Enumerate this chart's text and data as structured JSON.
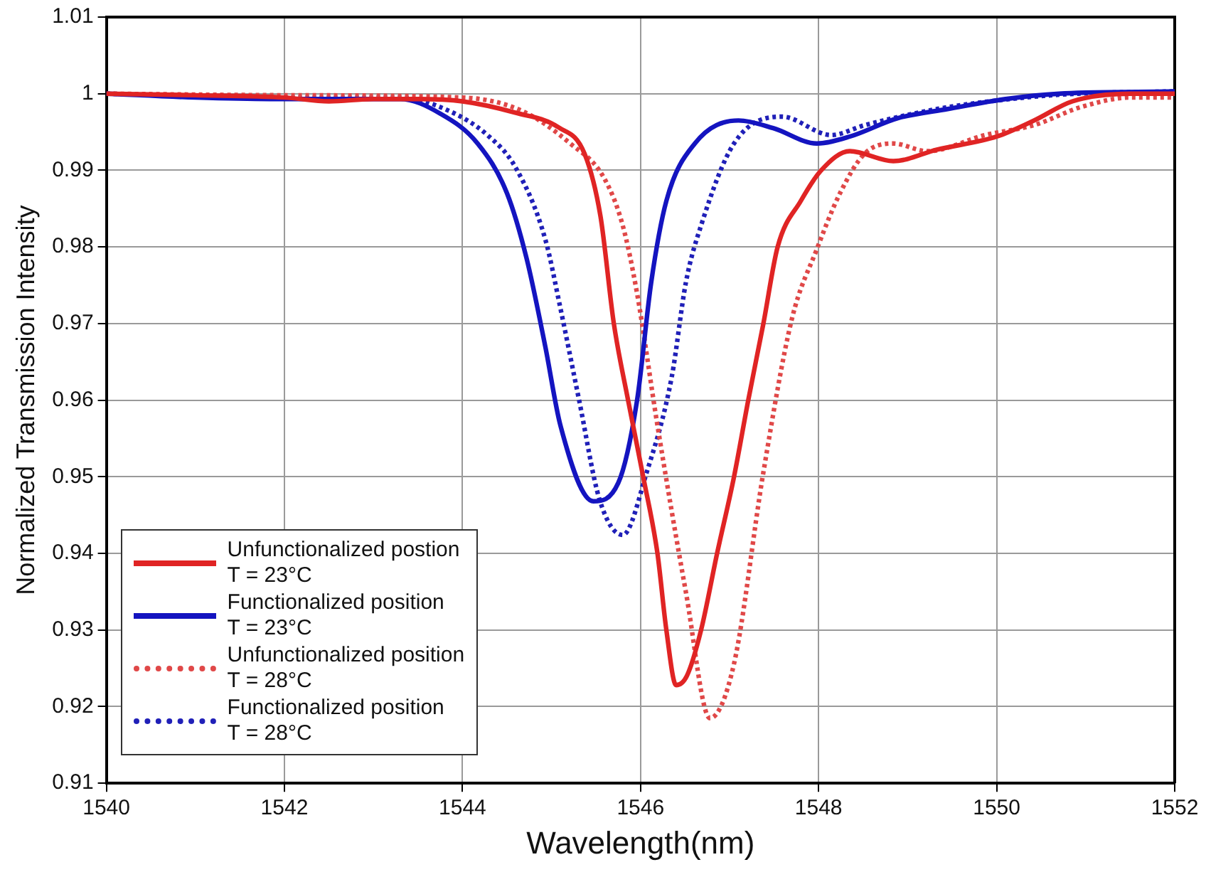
{
  "chart_data": {
    "type": "line",
    "xlabel": "Wavelength(nm)",
    "ylabel": "Normalized Transmission Intensity",
    "xlim": [
      1540,
      1552
    ],
    "xticks": [
      1540,
      1542,
      1544,
      1546,
      1548,
      1550,
      1552
    ],
    "ylim": [
      0.91,
      1.01
    ],
    "yticks": [
      0.91,
      0.92,
      0.93,
      0.94,
      0.95,
      0.96,
      0.97,
      0.98,
      0.99,
      1,
      1.01
    ],
    "grid": true,
    "legend": "bottom left",
    "marker": "none",
    "series": [
      {
        "name": "Unfunctionalized postion\nT = 23°C",
        "color": "#e02424",
        "line_style": "solid",
        "x": [
          1540,
          1541,
          1542,
          1542.5,
          1543,
          1543.5,
          1544,
          1544.6,
          1545.08,
          1545.37,
          1545.55,
          1545.7,
          1545.86,
          1546.03,
          1546.19,
          1546.29,
          1546.4,
          1546.52,
          1546.68,
          1546.86,
          1547.05,
          1547.21,
          1547.38,
          1547.54,
          1547.8,
          1548.03,
          1548.35,
          1548.84,
          1549.33,
          1550,
          1550.42,
          1550.85,
          1551.5,
          1552
        ],
        "values": [
          1,
          0.9998,
          0.9995,
          0.999,
          0.9993,
          0.9993,
          0.999,
          0.9975,
          0.9956,
          0.9922,
          0.984,
          0.97,
          0.96,
          0.95,
          0.94,
          0.93,
          0.9228,
          0.924,
          0.93,
          0.94,
          0.95,
          0.96,
          0.97,
          0.98,
          0.986,
          0.99,
          0.9925,
          0.9912,
          0.9927,
          0.9944,
          0.9965,
          0.999,
          1,
          1
        ]
      },
      {
        "name": "Functionalized position\nT = 23°C",
        "color": "#1414c0",
        "line_style": "solid",
        "x": [
          1540,
          1541,
          1541.84,
          1543.3,
          1543.75,
          1544.17,
          1544.5,
          1544.72,
          1544.93,
          1545.1,
          1545.47,
          1545.75,
          1545.96,
          1546.12,
          1546.29,
          1546.61,
          1547.1,
          1547.49,
          1547.98,
          1548.35,
          1548.89,
          1549.45,
          1550.1,
          1550.7,
          1552
        ],
        "values": [
          1,
          0.9995,
          0.9993,
          0.9993,
          0.9974,
          0.9935,
          0.987,
          0.9785,
          0.967,
          0.9567,
          0.9468,
          0.9492,
          0.9599,
          0.9754,
          0.986,
          0.9935,
          0.9965,
          0.9955,
          0.9935,
          0.9944,
          0.9968,
          0.998,
          0.9993,
          1,
          1.0003
        ]
      },
      {
        "name": "Unfunctionalized position\nT = 28°C",
        "color": "#e04848",
        "line_style": "dotted",
        "x": [
          1540,
          1542,
          1544,
          1544.66,
          1545.21,
          1545.59,
          1545.8,
          1545.96,
          1546.19,
          1546.51,
          1546.78,
          1547.05,
          1547.38,
          1547.7,
          1547.98,
          1548.24,
          1548.52,
          1548.84,
          1549.22,
          1549.87,
          1550.42,
          1550.96,
          1551.5,
          1552
        ],
        "values": [
          1,
          0.9998,
          0.9995,
          0.9978,
          0.9935,
          0.989,
          0.9828,
          0.974,
          0.9567,
          0.9349,
          0.9185,
          0.9256,
          0.9506,
          0.9706,
          0.9797,
          0.987,
          0.9922,
          0.9935,
          0.9925,
          0.9946,
          0.9959,
          0.9983,
          0.9995,
          0.9995
        ]
      },
      {
        "name": "Functionalized position\nT = 28°C",
        "color": "#2020b8",
        "line_style": "dotted",
        "x": [
          1540,
          1542,
          1543.3,
          1543.84,
          1544.28,
          1544.6,
          1544.93,
          1545.1,
          1545.31,
          1545.54,
          1545.8,
          1546.07,
          1546.35,
          1546.51,
          1546.68,
          1547.05,
          1547.59,
          1548.14,
          1548.52,
          1549.33,
          1550.15,
          1550.9,
          1552
        ],
        "values": [
          1,
          0.9995,
          0.9995,
          0.9978,
          0.9946,
          0.9903,
          0.981,
          0.972,
          0.96,
          0.947,
          0.9424,
          0.9506,
          0.963,
          0.9754,
          0.9828,
          0.9935,
          0.997,
          0.9946,
          0.9959,
          0.998,
          0.9993,
          1,
          1.0003
        ]
      }
    ]
  }
}
